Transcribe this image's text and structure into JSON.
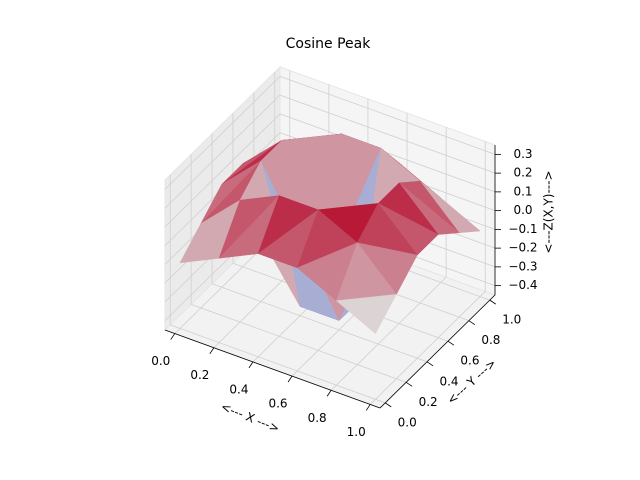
{
  "chart_data": {
    "type": "surface3d",
    "title": "Cosine Peak",
    "xlabel": "<--- X --->",
    "ylabel": "<--- Y --->",
    "zlabel": "<---Z(X,Y)--->",
    "x": [
      0,
      0.2,
      0.4,
      0.6,
      0.8,
      1.0
    ],
    "y": [
      0,
      0.2,
      0.4,
      0.6,
      0.8,
      1.0
    ],
    "z": [
      [
        -0.1,
        0.0,
        0.1,
        0.1,
        0.0,
        -0.1
      ],
      [
        0.0,
        0.2,
        0.3,
        0.3,
        0.2,
        0.0
      ],
      [
        0.1,
        0.3,
        -0.4,
        -0.4,
        0.3,
        0.1
      ],
      [
        0.1,
        0.3,
        -0.4,
        -0.4,
        0.3,
        0.1
      ],
      [
        0.0,
        0.2,
        0.3,
        0.3,
        0.2,
        0.0
      ],
      [
        -0.1,
        0.0,
        0.1,
        0.1,
        0.0,
        -0.1
      ]
    ],
    "colormap": "coolwarm",
    "xlim": [
      -0.05,
      1.05
    ],
    "ylim": [
      -0.05,
      1.05
    ],
    "zlim": [
      -0.45,
      0.35
    ],
    "xticks": [
      {
        "value": 0,
        "label": "0.0"
      },
      {
        "value": 0.2,
        "label": "0.2"
      },
      {
        "value": 0.4,
        "label": "0.4"
      },
      {
        "value": 0.6,
        "label": "0.6"
      },
      {
        "value": 0.8,
        "label": "0.8"
      },
      {
        "value": 1.0,
        "label": "1.0"
      }
    ],
    "yticks": [
      {
        "value": 0,
        "label": "0.0"
      },
      {
        "value": 0.2,
        "label": "0.2"
      },
      {
        "value": 0.4,
        "label": "0.4"
      },
      {
        "value": 0.6,
        "label": "0.6"
      },
      {
        "value": 0.8,
        "label": "0.8"
      },
      {
        "value": 1.0,
        "label": "1.0"
      }
    ],
    "zticks": [
      {
        "value": -0.4,
        "label": "−0.4"
      },
      {
        "value": -0.3,
        "label": "−0.3"
      },
      {
        "value": -0.2,
        "label": "−0.2"
      },
      {
        "value": -0.1,
        "label": "−0.1"
      },
      {
        "value": 0.0,
        "label": "0.0"
      },
      {
        "value": 0.1,
        "label": "0.1"
      },
      {
        "value": 0.2,
        "label": "0.2"
      },
      {
        "value": 0.3,
        "label": "0.3"
      }
    ],
    "grid": true
  }
}
